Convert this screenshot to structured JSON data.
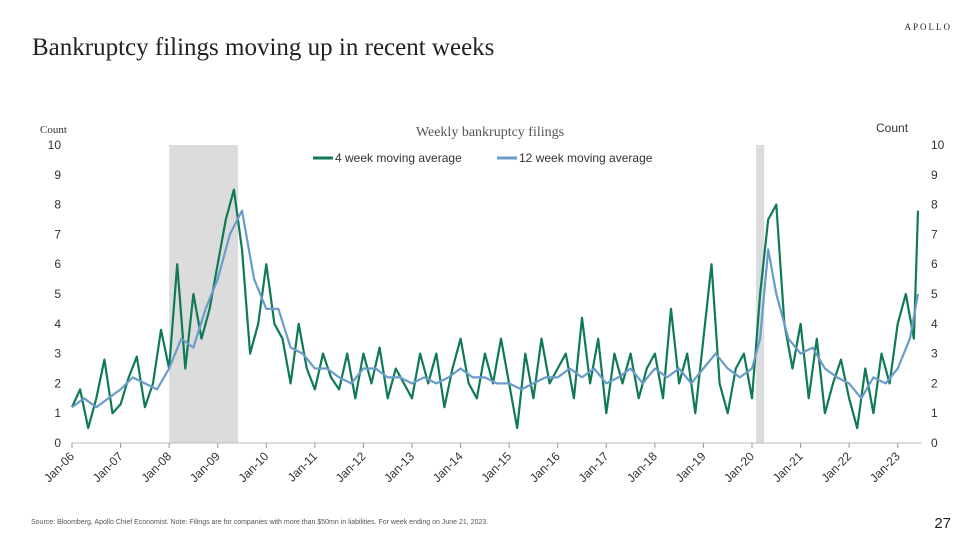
{
  "brand": "APOLLO",
  "page_title": "Bankruptcy filings moving up in recent weeks",
  "footnote": "Source: Bloomberg, Apollo Chief Economist. Note: Filings are for companies with more than $50mn in liabilities. For week ending on June 21, 2023.",
  "page_number": "27",
  "colors": {
    "series_4wk": "#0f7a55",
    "series_12wk": "#6b9bcb",
    "recession_shading": "#dcdcdc"
  },
  "chart_data": {
    "type": "line",
    "title": "Weekly bankruptcy filings",
    "ylabel_left": "Count",
    "ylabel_right": "Count",
    "ylim": [
      0,
      10
    ],
    "yticks": [
      0,
      1,
      2,
      3,
      4,
      5,
      6,
      7,
      8,
      9,
      10
    ],
    "xlim": [
      "2006-01-01",
      "2023-07-01"
    ],
    "xtick_labels": [
      "Jan-06",
      "Jan-07",
      "Jan-08",
      "Jan-09",
      "Jan-10",
      "Jan-11",
      "Jan-12",
      "Jan-13",
      "Jan-14",
      "Jan-15",
      "Jan-16",
      "Jan-17",
      "Jan-18",
      "Jan-19",
      "Jan-20",
      "Jan-21",
      "Jan-22",
      "Jan-23"
    ],
    "legend_position": "top-center",
    "grid": false,
    "recessions": [
      {
        "start": "2008-01",
        "end": "2009-06"
      },
      {
        "start": "2020-02",
        "end": "2020-04"
      }
    ],
    "series": [
      {
        "name": "4 week moving average",
        "x": [
          "2006-01",
          "2006-03",
          "2006-05",
          "2006-07",
          "2006-09",
          "2006-11",
          "2007-01",
          "2007-03",
          "2007-05",
          "2007-07",
          "2007-09",
          "2007-11",
          "2008-01",
          "2008-03",
          "2008-05",
          "2008-07",
          "2008-09",
          "2008-11",
          "2009-01",
          "2009-03",
          "2009-05",
          "2009-07",
          "2009-09",
          "2009-11",
          "2010-01",
          "2010-03",
          "2010-05",
          "2010-07",
          "2010-09",
          "2010-11",
          "2011-01",
          "2011-03",
          "2011-05",
          "2011-07",
          "2011-09",
          "2011-11",
          "2012-01",
          "2012-03",
          "2012-05",
          "2012-07",
          "2012-09",
          "2012-11",
          "2013-01",
          "2013-03",
          "2013-05",
          "2013-07",
          "2013-09",
          "2013-11",
          "2014-01",
          "2014-03",
          "2014-05",
          "2014-07",
          "2014-09",
          "2014-11",
          "2015-01",
          "2015-03",
          "2015-05",
          "2015-07",
          "2015-09",
          "2015-11",
          "2016-01",
          "2016-03",
          "2016-05",
          "2016-07",
          "2016-09",
          "2016-11",
          "2017-01",
          "2017-03",
          "2017-05",
          "2017-07",
          "2017-09",
          "2017-11",
          "2018-01",
          "2018-03",
          "2018-05",
          "2018-07",
          "2018-09",
          "2018-11",
          "2019-01",
          "2019-03",
          "2019-05",
          "2019-07",
          "2019-09",
          "2019-11",
          "2020-01",
          "2020-03",
          "2020-05",
          "2020-07",
          "2020-09",
          "2020-11",
          "2021-01",
          "2021-03",
          "2021-05",
          "2021-07",
          "2021-09",
          "2021-11",
          "2022-01",
          "2022-03",
          "2022-05",
          "2022-07",
          "2022-09",
          "2022-11",
          "2023-01",
          "2023-03",
          "2023-05",
          "2023-06"
        ],
        "values": [
          1.2,
          1.8,
          0.5,
          1.5,
          2.8,
          1.0,
          1.3,
          2.2,
          2.9,
          1.2,
          2.0,
          3.8,
          2.5,
          6.0,
          2.5,
          5.0,
          3.5,
          4.5,
          6.0,
          7.5,
          8.5,
          6.5,
          3.0,
          4.0,
          6.0,
          4.0,
          3.5,
          2.0,
          4.0,
          2.5,
          1.8,
          3.0,
          2.2,
          1.8,
          3.0,
          1.5,
          3.0,
          2.0,
          3.2,
          1.5,
          2.5,
          2.0,
          1.5,
          3.0,
          2.0,
          3.0,
          1.2,
          2.5,
          3.5,
          2.0,
          1.5,
          3.0,
          2.0,
          3.5,
          2.0,
          0.5,
          3.0,
          1.5,
          3.5,
          2.0,
          2.5,
          3.0,
          1.5,
          4.2,
          2.0,
          3.5,
          1.0,
          3.0,
          2.0,
          3.0,
          1.5,
          2.5,
          3.0,
          1.5,
          4.5,
          2.0,
          3.0,
          1.0,
          3.5,
          6.0,
          2.0,
          1.0,
          2.5,
          3.0,
          1.5,
          5.0,
          7.5,
          8.0,
          4.0,
          2.5,
          4.0,
          1.5,
          3.5,
          1.0,
          2.0,
          2.8,
          1.5,
          0.5,
          2.5,
          1.0,
          3.0,
          2.0,
          4.0,
          5.0,
          3.5,
          7.8
        ]
      },
      {
        "name": "12 week moving average",
        "x": [
          "2006-01",
          "2006-04",
          "2006-07",
          "2006-10",
          "2007-01",
          "2007-04",
          "2007-07",
          "2007-10",
          "2008-01",
          "2008-04",
          "2008-07",
          "2008-10",
          "2009-01",
          "2009-04",
          "2009-07",
          "2009-10",
          "2010-01",
          "2010-04",
          "2010-07",
          "2010-10",
          "2011-01",
          "2011-04",
          "2011-07",
          "2011-10",
          "2012-01",
          "2012-04",
          "2012-07",
          "2012-10",
          "2013-01",
          "2013-04",
          "2013-07",
          "2013-10",
          "2014-01",
          "2014-04",
          "2014-07",
          "2014-10",
          "2015-01",
          "2015-04",
          "2015-07",
          "2015-10",
          "2016-01",
          "2016-04",
          "2016-07",
          "2016-10",
          "2017-01",
          "2017-04",
          "2017-07",
          "2017-10",
          "2018-01",
          "2018-04",
          "2018-07",
          "2018-10",
          "2019-01",
          "2019-04",
          "2019-07",
          "2019-10",
          "2020-01",
          "2020-03",
          "2020-05",
          "2020-07",
          "2020-10",
          "2021-01",
          "2021-04",
          "2021-07",
          "2021-10",
          "2022-01",
          "2022-04",
          "2022-07",
          "2022-10",
          "2023-01",
          "2023-04",
          "2023-06"
        ],
        "values": [
          1.2,
          1.5,
          1.2,
          1.5,
          1.8,
          2.2,
          2.0,
          1.8,
          2.5,
          3.5,
          3.2,
          4.5,
          5.5,
          7.0,
          7.8,
          5.5,
          4.5,
          4.5,
          3.2,
          3.0,
          2.5,
          2.5,
          2.2,
          2.0,
          2.5,
          2.5,
          2.2,
          2.2,
          2.0,
          2.2,
          2.0,
          2.2,
          2.5,
          2.2,
          2.2,
          2.0,
          2.0,
          1.8,
          2.0,
          2.2,
          2.2,
          2.5,
          2.2,
          2.5,
          2.0,
          2.2,
          2.5,
          2.0,
          2.5,
          2.2,
          2.5,
          2.0,
          2.5,
          3.0,
          2.5,
          2.2,
          2.5,
          3.5,
          6.5,
          5.0,
          3.5,
          3.0,
          3.2,
          2.5,
          2.2,
          2.0,
          1.5,
          2.2,
          2.0,
          2.5,
          3.5,
          5.0
        ]
      }
    ]
  }
}
